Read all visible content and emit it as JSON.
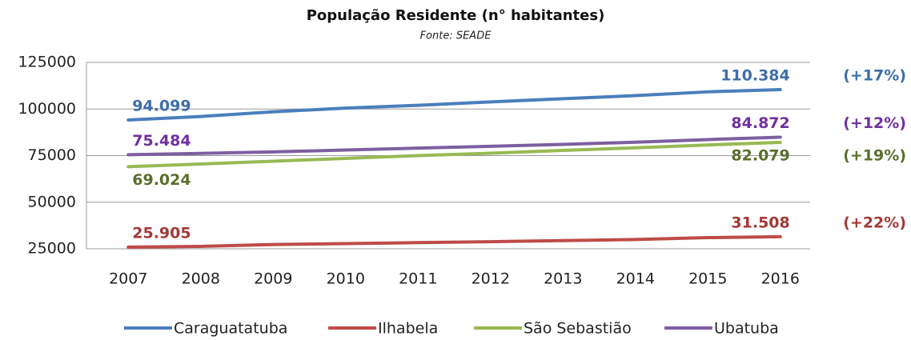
{
  "chart_data": {
    "type": "line",
    "title": "População Residente (n° habitantes)",
    "subtitle": "Fonte: SEADE",
    "categories": [
      "2007",
      "2008",
      "2009",
      "2010",
      "2011",
      "2012",
      "2013",
      "2014",
      "2015",
      "2016"
    ],
    "ylim": [
      25000,
      125000
    ],
    "yticks": [
      25000,
      50000,
      75000,
      100000,
      125000
    ],
    "grid": true,
    "legend": "bottom",
    "series": [
      {
        "name": "Caraguatatuba",
        "color": "#4a7ebb",
        "label_color": "#3f6ea8",
        "values": [
          94099,
          96000,
          98500,
          100500,
          102000,
          103800,
          105500,
          107200,
          109200,
          110384
        ],
        "value_labels": [
          "94.099",
          null,
          null,
          null,
          null,
          null,
          null,
          null,
          null,
          "110.384"
        ],
        "annotation": "(+17%)"
      },
      {
        "name": "Ilhabela",
        "color": "#be4b48",
        "label_color": "#a33a37",
        "values": [
          25905,
          26300,
          27300,
          27800,
          28300,
          28800,
          29400,
          30000,
          31000,
          31508
        ],
        "value_labels": [
          "25.905",
          null,
          null,
          null,
          null,
          null,
          null,
          null,
          null,
          "31.508"
        ],
        "annotation": "(+22%)"
      },
      {
        "name": "São Sebastião",
        "color": "#98b954",
        "label_color": "#5a6e2c",
        "values": [
          69024,
          70500,
          72000,
          73500,
          75000,
          76300,
          77800,
          79200,
          80700,
          82079
        ],
        "value_labels": [
          "69.024",
          null,
          null,
          null,
          null,
          null,
          null,
          null,
          null,
          "82.079"
        ],
        "annotation": "(+19%)"
      },
      {
        "name": "Ubatuba",
        "color": "#7d5fa0",
        "label_color": "#7030a0",
        "values": [
          75484,
          76200,
          77000,
          78000,
          79000,
          80000,
          81000,
          82200,
          83600,
          84872
        ],
        "value_labels": [
          "75.484",
          null,
          null,
          null,
          null,
          null,
          null,
          null,
          null,
          "84.872"
        ],
        "annotation": "(+12%)"
      }
    ]
  }
}
